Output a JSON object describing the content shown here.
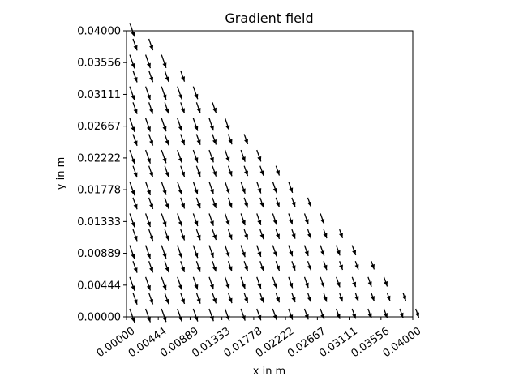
{
  "chart_data": {
    "type": "quiver",
    "title": "Gradient field",
    "xlabel": "x in m",
    "ylabel": "y in m",
    "xlim": [
      0,
      0.04
    ],
    "ylim": [
      0,
      0.04
    ],
    "xticks": [
      0,
      0.00444,
      0.00889,
      0.01333,
      0.01778,
      0.02222,
      0.02667,
      0.03111,
      0.03556,
      0.04
    ],
    "yticks": [
      0,
      0.00444,
      0.00889,
      0.01333,
      0.01778,
      0.02222,
      0.02667,
      0.03111,
      0.03556,
      0.04
    ],
    "xtick_labels": [
      "0.00000",
      "0.00444",
      "0.00889",
      "0.01333",
      "0.01778",
      "0.02222",
      "0.02667",
      "0.03111",
      "0.03556",
      "0.04000"
    ],
    "ytick_labels": [
      "0.00000",
      "0.00444",
      "0.00889",
      "0.01333",
      "0.01778",
      "0.02222",
      "0.02667",
      "0.03111",
      "0.03556",
      "0.04000"
    ],
    "domain": "triangle with vertices (0,0), (0.04,0), (0,0.04)",
    "grid_spacing": 0.00222,
    "vector_direction": "down and slightly right",
    "arrow_color": "#000000"
  }
}
